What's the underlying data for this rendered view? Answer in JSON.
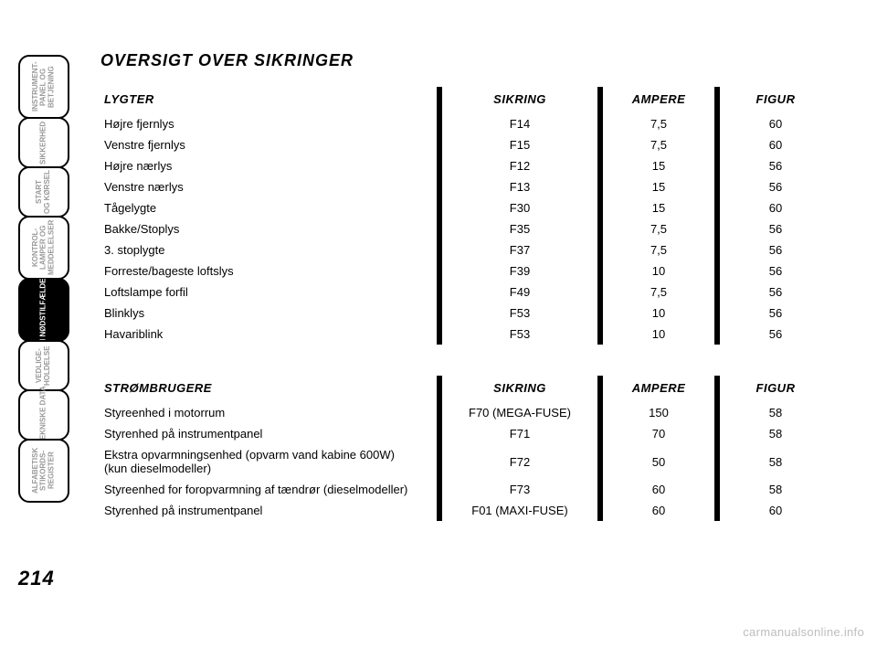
{
  "page_number": "214",
  "title": "OVERSIGT OVER SIKRINGER",
  "tabs": [
    {
      "label": "INSTRUMENT-\nPANEL OG\nBETJENING",
      "active": false
    },
    {
      "label": "SIKKERHED",
      "active": false
    },
    {
      "label": "START\nOG KØRSEL",
      "active": false
    },
    {
      "label": "KONTROL-\nLAMPER OG\nMEDDELELSER",
      "active": false
    },
    {
      "label": "I NØDSTILFÆLDE",
      "active": true
    },
    {
      "label": "VEDLIGE-\nHOLDELSE",
      "active": false
    },
    {
      "label": "TEKNISKE DATA",
      "active": false
    },
    {
      "label": "ALFABETISK\nSTIKORDS-\nREGISTER",
      "active": false
    }
  ],
  "headers": {
    "table1_label": "LYGTER",
    "table2_label": "STRØMBRUGERE",
    "fuse": "SIKRING",
    "ampere": "AMPERE",
    "figure": "FIGUR"
  },
  "table1_rows": [
    {
      "label": "Højre fjernlys",
      "fuse": "F14",
      "ampere": "7,5",
      "figure": "60"
    },
    {
      "label": "Venstre fjernlys",
      "fuse": "F15",
      "ampere": "7,5",
      "figure": "60"
    },
    {
      "label": "Højre nærlys",
      "fuse": "F12",
      "ampere": "15",
      "figure": "56"
    },
    {
      "label": "Venstre nærlys",
      "fuse": "F13",
      "ampere": "15",
      "figure": "56"
    },
    {
      "label": "Tågelygte",
      "fuse": "F30",
      "ampere": "15",
      "figure": "60"
    },
    {
      "label": "Bakke/Stoplys",
      "fuse": "F35",
      "ampere": "7,5",
      "figure": "56"
    },
    {
      "label": "3. stoplygte",
      "fuse": "F37",
      "ampere": "7,5",
      "figure": "56"
    },
    {
      "label": "Forreste/bageste loftslys",
      "fuse": "F39",
      "ampere": "10",
      "figure": "56"
    },
    {
      "label": "Loftslampe forfil",
      "fuse": "F49",
      "ampere": "7,5",
      "figure": "56"
    },
    {
      "label": "Blinklys",
      "fuse": "F53",
      "ampere": "10",
      "figure": "56"
    },
    {
      "label": "Havariblink",
      "fuse": "F53",
      "ampere": "10",
      "figure": "56"
    }
  ],
  "table2_rows": [
    {
      "label": "Styreenhed i motorrum",
      "fuse": "F70 (MEGA-FUSE)",
      "ampere": "150",
      "figure": "58"
    },
    {
      "label": "Styrenhed på instrumentpanel",
      "fuse": "F71",
      "ampere": "70",
      "figure": "58"
    },
    {
      "label": "Ekstra opvarmningsenhed (opvarm vand kabine 600W)\n(kun dieselmodeller)",
      "fuse": "F72",
      "ampere": "50",
      "figure": "58"
    },
    {
      "label": "Styreenhed for foropvarmning af tændrør (dieselmodeller)",
      "fuse": "F73",
      "ampere": "60",
      "figure": "58"
    },
    {
      "label": "Styrenhed på instrumentpanel",
      "fuse": "F01 (MAXI-FUSE)",
      "ampere": "60",
      "figure": "60"
    }
  ],
  "watermark": "carmanualsonline.info"
}
